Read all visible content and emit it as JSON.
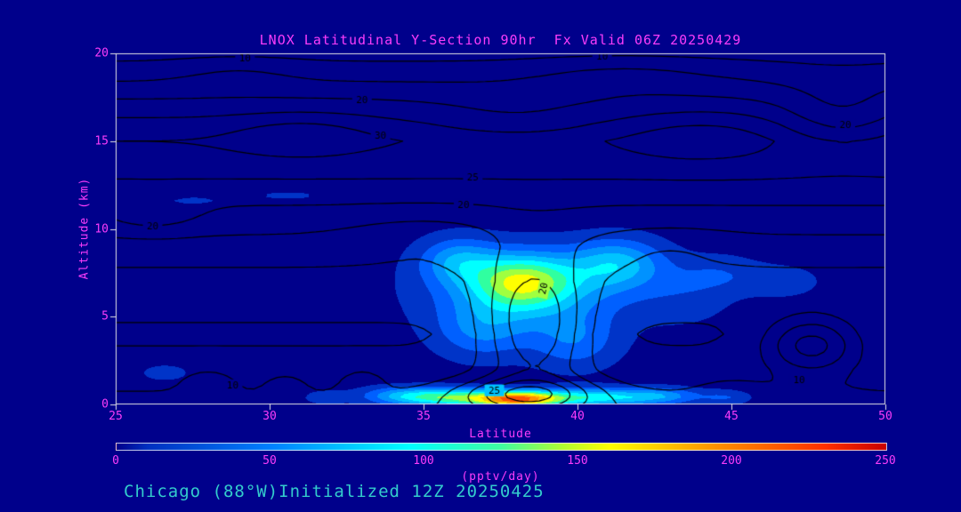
{
  "figure": {
    "title": "LNOX Latitudinal Y-Section 90hr  Fx Valid 06Z 20250429",
    "footer": "Chicago (88°W)Initialized 12Z 20250425",
    "colors": {
      "background": "#00008B",
      "frame": "#E6E6E6",
      "label_text": "#FA3CFA",
      "footer_text": "#33CCCC",
      "contour_line": "#000000"
    }
  },
  "chart_data": {
    "type": "filled-contour",
    "title": "LNOX Latitudinal Y-Section 90hr  Fx Valid 06Z 20250429",
    "xlabel": "Latitude",
    "ylabel": "Altitude (km)",
    "xlim": [
      25,
      50
    ],
    "ylim": [
      0,
      20
    ],
    "xticks": [
      25,
      30,
      35,
      40,
      45,
      50
    ],
    "yticks": [
      0,
      5,
      10,
      15,
      20
    ],
    "grid": false,
    "legend": "colorbar-bottom",
    "shade_levels": [
      10,
      30,
      50,
      70,
      90,
      110,
      130,
      150,
      170,
      190,
      210,
      230,
      250
    ],
    "shade_colors": [
      "#0034C8",
      "#0060FF",
      "#0092FF",
      "#00C4FF",
      "#00FFFF",
      "#30FFA0",
      "#A0FF40",
      "#FFFF00",
      "#FFC800",
      "#FF9000",
      "#FF5000",
      "#FF0000",
      "#BE0000"
    ],
    "shaded_field": {
      "units": "pptv/day",
      "base_profile": [
        [
          0,
          0
        ],
        [
          20,
          0
        ]
      ],
      "blobs": [
        [
          38.2,
          7.0,
          105,
          1.6,
          1.5
        ],
        [
          38.5,
          6.5,
          60,
          3.2,
          2.2
        ],
        [
          41.3,
          8.0,
          70,
          1.5,
          1.4
        ],
        [
          36.1,
          8.2,
          55,
          1.2,
          1.3
        ],
        [
          36.9,
          4.2,
          45,
          1.5,
          1.6
        ],
        [
          39.9,
          3.6,
          42,
          1.4,
          1.6
        ],
        [
          44.6,
          7.4,
          26,
          1.4,
          1.1
        ],
        [
          46.7,
          7.0,
          22,
          1.2,
          0.9
        ],
        [
          43.5,
          6.0,
          18,
          1.5,
          1.5
        ],
        [
          38.0,
          0.3,
          205,
          1.4,
          0.45
        ],
        [
          35.8,
          0.4,
          110,
          1.5,
          0.5
        ],
        [
          40.6,
          0.4,
          100,
          2.0,
          0.5
        ],
        [
          34.2,
          0.5,
          55,
          1.3,
          0.5
        ],
        [
          42.8,
          0.5,
          45,
          1.2,
          0.45
        ],
        [
          44.8,
          0.4,
          30,
          0.8,
          0.4
        ],
        [
          31.8,
          0.4,
          22,
          0.7,
          0.4
        ],
        [
          27.5,
          11.6,
          13,
          1.2,
          0.35
        ],
        [
          30.6,
          11.9,
          13,
          1.6,
          0.35
        ],
        [
          26.6,
          1.8,
          16,
          1.0,
          0.6
        ]
      ]
    },
    "contour_levels": [
      5,
      10,
      15,
      20,
      25,
      30,
      35,
      40
    ],
    "contour_field": {
      "base_profile": [
        [
          0,
          13
        ],
        [
          0.6,
          10.5
        ],
        [
          1.2,
          8.5
        ],
        [
          2,
          6.5
        ],
        [
          3,
          5.2
        ],
        [
          4,
          4.6
        ],
        [
          5,
          5.2
        ],
        [
          6,
          6.5
        ],
        [
          7,
          8
        ],
        [
          8,
          10.5
        ],
        [
          9,
          13
        ],
        [
          10,
          16
        ],
        [
          11,
          19
        ],
        [
          12,
          22
        ],
        [
          13,
          25.5
        ],
        [
          14,
          28
        ],
        [
          15,
          30
        ],
        [
          16,
          26.5
        ],
        [
          17,
          22
        ],
        [
          17.6,
          19
        ],
        [
          18.2,
          16
        ],
        [
          18.8,
          13
        ],
        [
          19.4,
          10.5
        ],
        [
          20,
          8.5
        ]
      ],
      "blobs": [
        [
          38.6,
          4.5,
          19,
          1.7,
          3.8
        ],
        [
          38.3,
          0.6,
          16,
          2.2,
          0.9
        ],
        [
          31.0,
          15.3,
          5,
          2.2,
          1.2
        ],
        [
          38.0,
          16.2,
          -4,
          3.0,
          1.5
        ],
        [
          44.0,
          15.2,
          4,
          2.5,
          1.5
        ],
        [
          48.6,
          16.3,
          -8,
          2.0,
          2.0
        ],
        [
          26.2,
          10.8,
          5,
          1.5,
          1.0
        ],
        [
          35.0,
          9.6,
          -3.5,
          2.5,
          1.3
        ],
        [
          41.5,
          18.7,
          4,
          3.0,
          1.0
        ],
        [
          29.0,
          18.8,
          3,
          2.0,
          0.9
        ],
        [
          47.6,
          3.4,
          17,
          1.5,
          1.6
        ],
        [
          28.0,
          1.2,
          6,
          0.8,
          0.8
        ],
        [
          30.5,
          1.0,
          5,
          0.6,
          0.7
        ],
        [
          33.0,
          1.3,
          5,
          0.7,
          0.8
        ],
        [
          45.0,
          0.8,
          4,
          1.0,
          0.6
        ],
        [
          43.0,
          9.0,
          -2.5,
          2.0,
          1.2
        ]
      ]
    },
    "contour_labels": [
      {
        "text": "10",
        "lat": 29.2,
        "alt": 19.7,
        "rot": 0
      },
      {
        "text": "10",
        "lat": 40.8,
        "alt": 19.8,
        "rot": 0
      },
      {
        "text": "20",
        "lat": 33.0,
        "alt": 17.35,
        "rot": 0
      },
      {
        "text": "30",
        "lat": 33.6,
        "alt": 15.3,
        "rot": 0
      },
      {
        "text": "25",
        "lat": 36.6,
        "alt": 12.95,
        "rot": 0
      },
      {
        "text": "20",
        "lat": 36.3,
        "alt": 11.35,
        "rot": 0
      },
      {
        "text": "20",
        "lat": 48.7,
        "alt": 15.9,
        "rot": 0
      },
      {
        "text": "20",
        "lat": 26.2,
        "alt": 10.15,
        "rot": 0
      },
      {
        "text": "20",
        "lat": 38.9,
        "alt": 6.6,
        "rot": -78
      },
      {
        "text": "10",
        "lat": 47.2,
        "alt": 1.4,
        "rot": 0
      },
      {
        "text": "10",
        "lat": 28.8,
        "alt": 1.1,
        "rot": 0
      },
      {
        "text": "25",
        "lat": 37.3,
        "alt": 0.8,
        "rot": 0
      }
    ],
    "colorbar": {
      "min": 0,
      "max": 250,
      "ticks": [
        0,
        50,
        100,
        150,
        200,
        250
      ],
      "units": "(pptv/day)",
      "gradient_stops": [
        [
          0,
          "#00008B"
        ],
        [
          10,
          "#0030C0"
        ],
        [
          50,
          "#0080FF"
        ],
        [
          95,
          "#00FFFF"
        ],
        [
          125,
          "#40FFA0"
        ],
        [
          145,
          "#B0FF30"
        ],
        [
          160,
          "#FFFF00"
        ],
        [
          195,
          "#FF9000"
        ],
        [
          230,
          "#FF3000"
        ],
        [
          250,
          "#C80000"
        ]
      ]
    }
  }
}
